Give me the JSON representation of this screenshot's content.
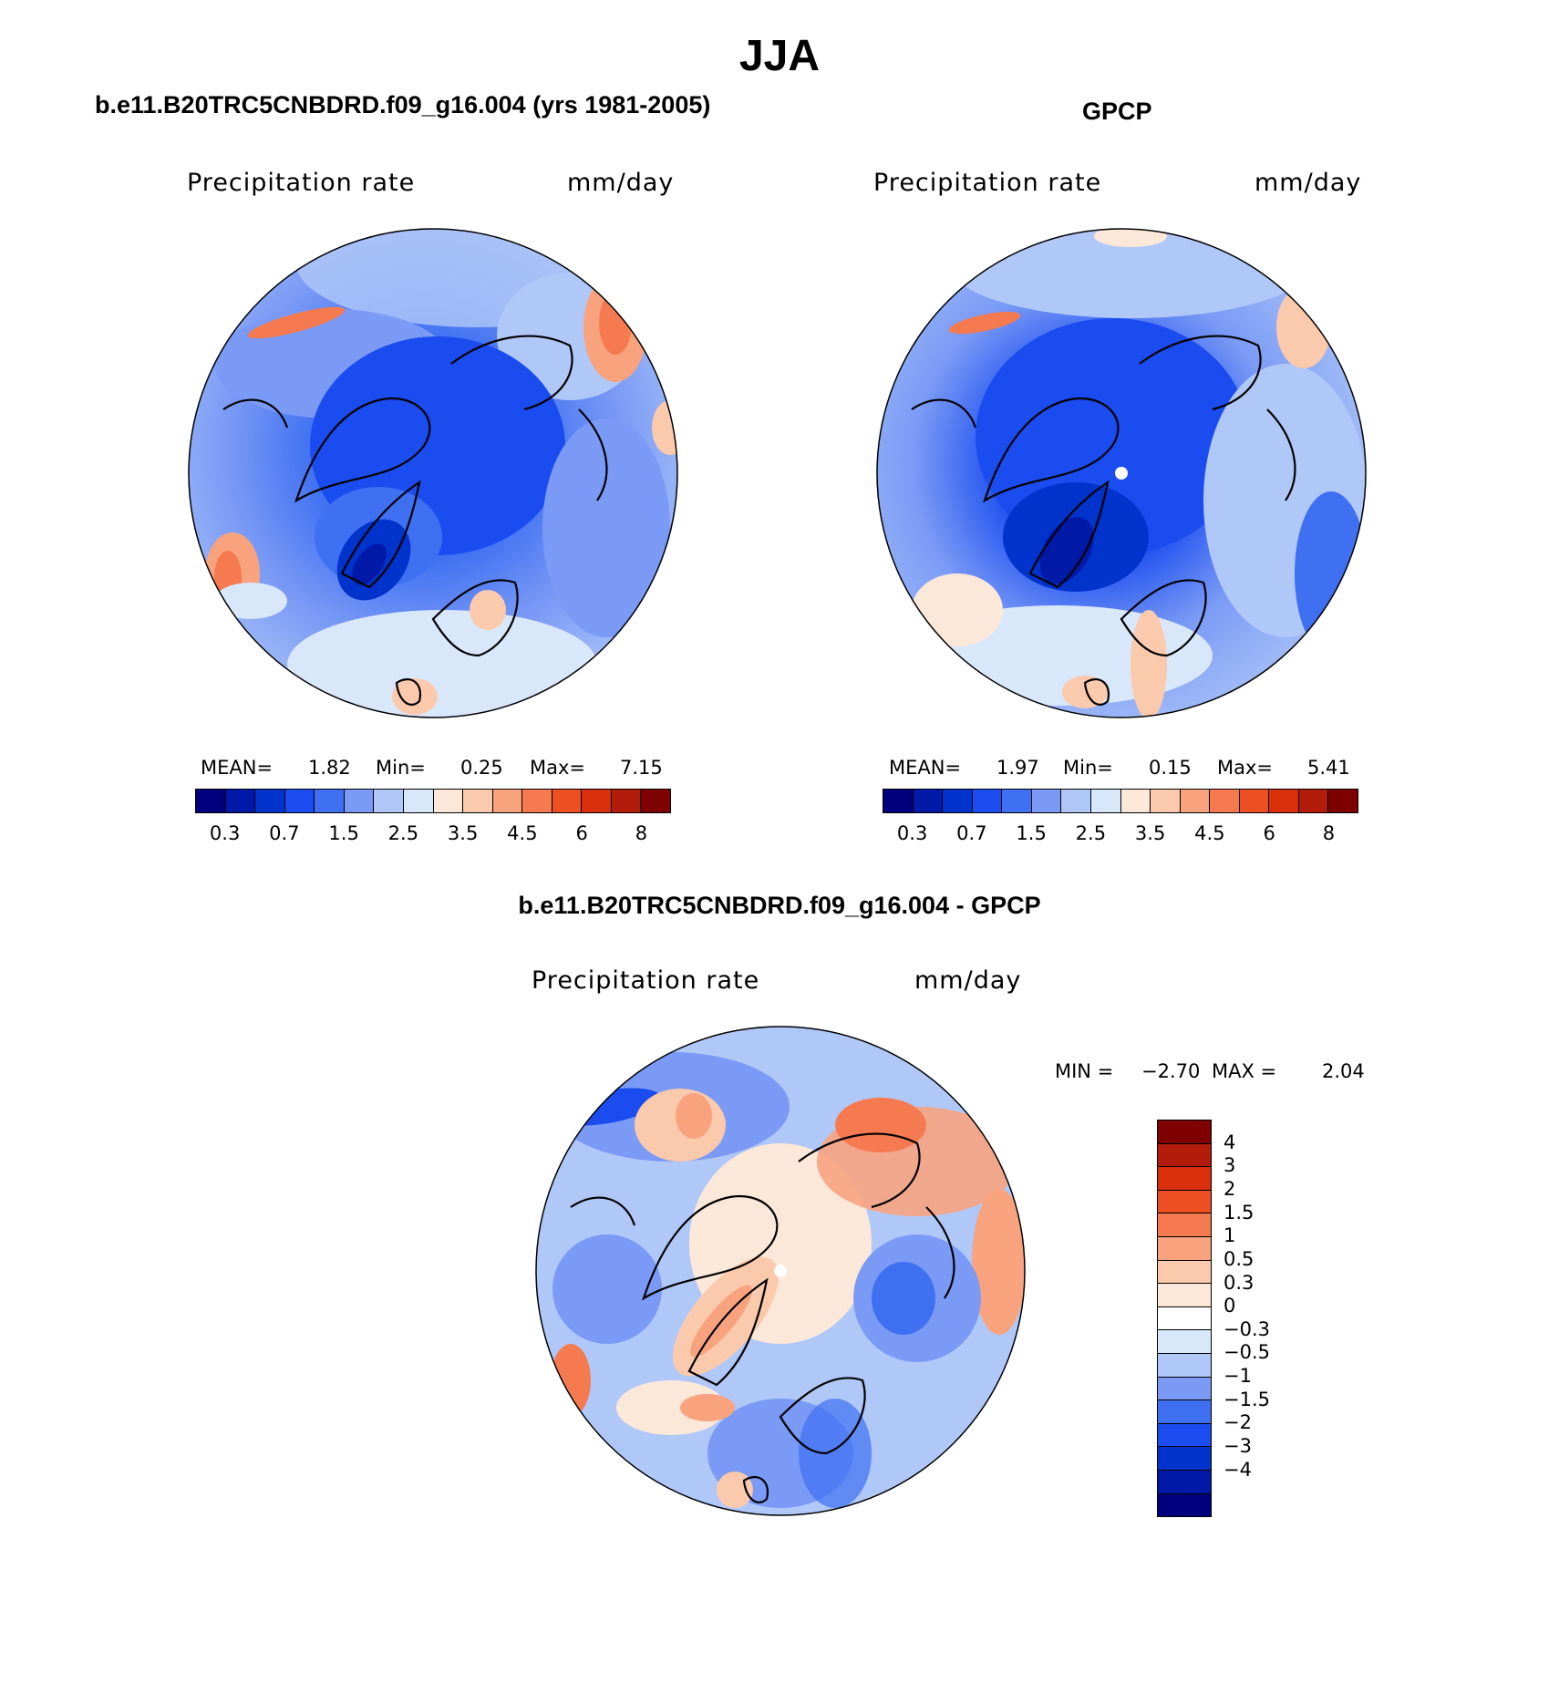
{
  "figure_title": "JJA",
  "panels": {
    "model": {
      "title": "b.e11.B20TRC5CNBDRD.f09_g16.004 (yrs 1981-2005)",
      "left_label": "Precipitation rate",
      "right_label": "mm/day",
      "mean_label": "MEAN=",
      "mean": "1.82",
      "min_label": "Min=",
      "min": "0.25",
      "max_label": "Max=",
      "max": "7.15"
    },
    "obs": {
      "title": "GPCP",
      "left_label": "Precipitation rate",
      "right_label": "mm/day",
      "mean_label": "MEAN=",
      "mean": "1.97",
      "min_label": "Min=",
      "min": "0.15",
      "max_label": "Max=",
      "max": "5.41"
    },
    "diff": {
      "title": "b.e11.B20TRC5CNBDRD.f09_g16.004 - GPCP",
      "left_label": "Precipitation rate",
      "right_label": "mm/day",
      "min_label": "MIN =",
      "min": "−2.70",
      "max_label": "MAX =",
      "max": "2.04"
    }
  },
  "chart_data": [
    {
      "type": "heatmap",
      "projection": "north polar stereographic",
      "title": "b.e11.B20TRC5CNBDRD.f09_g16.004 (yrs 1981-2005)",
      "variable": "Precipitation rate",
      "units": "mm/day",
      "mean": 1.82,
      "min": 0.25,
      "max": 7.15,
      "colorbar_levels": [
        0.2,
        0.3,
        0.5,
        0.7,
        1,
        1.5,
        2,
        2.5,
        3,
        3.5,
        4,
        4.5,
        5,
        6,
        7,
        8
      ],
      "colorbar_tick_labels": [
        "0.3",
        "0.7",
        "1.5",
        "2.5",
        "3.5",
        "4.5",
        "6",
        "8"
      ]
    },
    {
      "type": "heatmap",
      "projection": "north polar stereographic",
      "title": "GPCP",
      "variable": "Precipitation rate",
      "units": "mm/day",
      "mean": 1.97,
      "min": 0.15,
      "max": 5.41,
      "colorbar_levels": [
        0.2,
        0.3,
        0.5,
        0.7,
        1,
        1.5,
        2,
        2.5,
        3,
        3.5,
        4,
        4.5,
        5,
        6,
        7,
        8
      ],
      "colorbar_tick_labels": [
        "0.3",
        "0.7",
        "1.5",
        "2.5",
        "3.5",
        "4.5",
        "6",
        "8"
      ]
    },
    {
      "type": "heatmap",
      "projection": "north polar stereographic",
      "title": "b.e11.B20TRC5CNBDRD.f09_g16.004 - GPCP",
      "variable": "Precipitation rate",
      "units": "mm/day",
      "min": -2.7,
      "max": 2.04,
      "colorbar_levels": [
        -4,
        -3,
        -2,
        -1.5,
        -1,
        -0.5,
        -0.3,
        0,
        0.3,
        0.5,
        1,
        1.5,
        2,
        3,
        4
      ],
      "colorbar_tick_labels": [
        "4",
        "3",
        "2",
        "1.5",
        "1",
        "0.5",
        "0.3",
        "0",
        "−0.3",
        "−0.5",
        "−1",
        "−1.5",
        "−2",
        "−3",
        "−4"
      ]
    }
  ],
  "colors": {
    "abs_scale": [
      "#00007f",
      "#0019a7",
      "#0033cc",
      "#1a4cf0",
      "#3f70f2",
      "#7a9af5",
      "#b0c8f8",
      "#d9e7fb",
      "#fce8d9",
      "#fbc9ac",
      "#f8a37e",
      "#f57a50",
      "#ec4f22",
      "#d92f0a",
      "#b31c0a",
      "#7f0000"
    ],
    "diff_scale": [
      "#7f0000",
      "#b31c0a",
      "#d92f0a",
      "#ec4f22",
      "#f57a50",
      "#f8a37e",
      "#fbc9ac",
      "#fce8d9",
      "#ffffff",
      "#d9e7fb",
      "#b0c8f8",
      "#7a9af5",
      "#3f70f2",
      "#1a4cf0",
      "#0033cc",
      "#0019a7",
      "#00007f"
    ]
  }
}
